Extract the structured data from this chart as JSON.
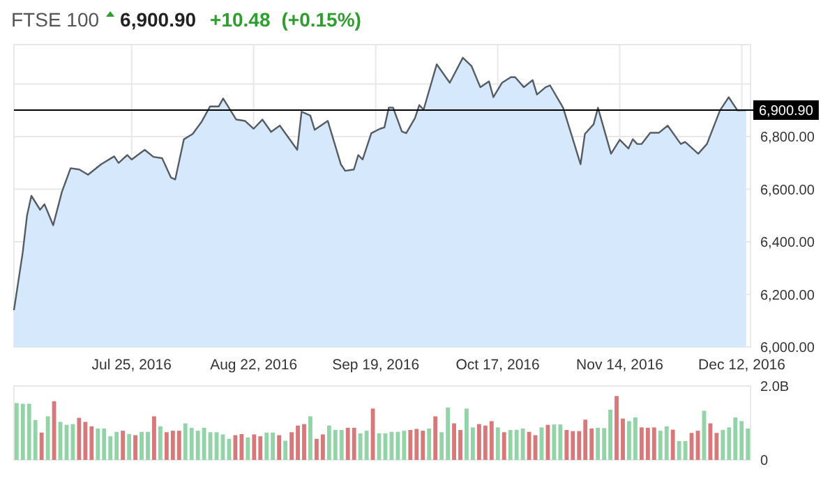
{
  "chart_data": [
    {
      "type": "area",
      "title": "FTSE 100",
      "annotations": [
        "6,900.90",
        "+10.48",
        "(+0.15%)"
      ],
      "x": [
        "2016-06-28",
        "2016-06-30",
        "2016-07-01",
        "2016-07-02",
        "2016-07-04",
        "2016-07-05",
        "2016-07-07",
        "2016-07-09",
        "2016-07-11",
        "2016-07-13",
        "2016-07-15",
        "2016-07-18",
        "2016-07-21",
        "2016-07-22",
        "2016-07-24",
        "2016-07-25",
        "2016-07-28",
        "2016-07-30",
        "2016-08-01",
        "2016-08-03",
        "2016-08-04",
        "2016-08-06",
        "2016-08-08",
        "2016-08-10",
        "2016-08-12",
        "2016-08-14",
        "2016-08-15",
        "2016-08-18",
        "2016-08-20",
        "2016-08-22",
        "2016-08-24",
        "2016-08-26",
        "2016-08-28",
        "2016-09-01",
        "2016-09-02",
        "2016-09-04",
        "2016-09-05",
        "2016-09-08",
        "2016-09-11",
        "2016-09-12",
        "2016-09-14",
        "2016-09-15",
        "2016-09-16",
        "2016-09-18",
        "2016-09-20",
        "2016-09-21",
        "2016-09-22",
        "2016-09-23",
        "2016-09-25",
        "2016-09-26",
        "2016-09-28",
        "2016-09-29",
        "2016-09-30",
        "2016-10-03",
        "2016-10-06",
        "2016-10-09",
        "2016-10-11",
        "2016-10-13",
        "2016-10-15",
        "2016-10-16",
        "2016-10-18",
        "2016-10-20",
        "2016-10-21",
        "2016-10-23",
        "2016-10-25",
        "2016-10-26",
        "2016-10-28",
        "2016-10-29",
        "2016-11-01",
        "2016-11-03",
        "2016-11-05",
        "2016-11-06",
        "2016-11-08",
        "2016-11-09",
        "2016-11-12",
        "2016-11-14",
        "2016-11-16",
        "2016-11-17",
        "2016-11-18",
        "2016-11-19",
        "2016-11-21",
        "2016-11-23",
        "2016-11-25",
        "2016-11-28",
        "2016-11-29",
        "2016-12-02",
        "2016-12-04",
        "2016-12-07",
        "2016-12-09",
        "2016-12-11",
        "2016-12-13"
      ],
      "series": [
        {
          "color": "#d6e8fb",
          "values": [
            6140,
            6358,
            6500,
            6575,
            6522,
            6543,
            6463,
            6590,
            6680,
            6675,
            6655,
            6695,
            6725,
            6700,
            6730,
            6713,
            6750,
            6723,
            6718,
            6645,
            6637,
            6790,
            6810,
            6855,
            6915,
            6915,
            6945,
            6865,
            6860,
            6830,
            6865,
            6818,
            6842,
            6750,
            6895,
            6880,
            6826,
            6860,
            6695,
            6670,
            6675,
            6730,
            6713,
            6813,
            6830,
            6835,
            6910,
            6910,
            6820,
            6813,
            6870,
            6920,
            6903,
            7075,
            7005,
            7100,
            7068,
            6988,
            7010,
            6950,
            7005,
            7026,
            7026,
            6988,
            7015,
            6960,
            6988,
            6995,
            6910,
            6803,
            6695,
            6810,
            6847,
            6910,
            6735,
            6788,
            6755,
            6790,
            6772,
            6772,
            6815,
            6815,
            6842,
            6772,
            6780,
            6735,
            6772,
            6900,
            6950,
            6900,
            6901
          ]
        }
      ],
      "xlim": [
        "2016-06-28",
        "2016-12-14"
      ],
      "xticks": [
        {
          "value": "2016-07-25",
          "label": "Jul 25, 2016"
        },
        {
          "value": "2016-08-22",
          "label": "Aug 22, 2016"
        },
        {
          "value": "2016-09-19",
          "label": "Sep 19, 2016"
        },
        {
          "value": "2016-10-17",
          "label": "Oct 17, 2016"
        },
        {
          "value": "2016-11-14",
          "label": "Nov 14, 2016"
        },
        {
          "value": "2016-12-12",
          "label": "Dec 12, 2016"
        }
      ],
      "ylim": [
        6000,
        7150
      ],
      "yticks": [
        {
          "value": 6000,
          "label": "6,000.00"
        },
        {
          "value": 6200,
          "label": "6,200.00"
        },
        {
          "value": 6400,
          "label": "6,400.00"
        },
        {
          "value": 6600,
          "label": "6,600.00"
        },
        {
          "value": 6800,
          "label": "6,800.00"
        },
        {
          "value": 7000,
          "label": null
        }
      ],
      "ref_lines": [
        {
          "axis": "y",
          "value": 6900.9,
          "label": "6,900.90",
          "color": "#000000"
        }
      ],
      "grid": true
    },
    {
      "type": "bar",
      "tick_labels": "y",
      "categories": [
        null,
        null,
        null,
        null,
        null,
        null,
        null,
        null,
        null,
        null,
        null,
        null,
        null,
        null,
        null,
        null,
        null,
        null,
        null,
        null,
        null,
        null,
        null,
        null,
        null,
        null,
        null,
        null,
        null,
        null,
        null,
        null,
        null,
        null,
        null,
        null,
        null,
        null,
        null,
        null,
        null,
        null,
        null,
        null,
        null,
        null,
        null,
        null,
        null,
        null,
        null,
        null,
        null,
        null,
        null,
        null,
        null,
        null,
        null,
        null,
        null,
        null,
        null,
        null,
        null,
        null,
        null,
        null,
        null,
        null,
        null,
        null,
        null,
        null,
        null,
        null,
        null,
        null,
        null,
        null,
        null,
        null,
        null,
        null,
        null,
        null,
        null,
        null,
        null,
        null,
        null,
        null,
        null,
        null,
        null,
        null,
        null,
        null,
        null,
        null,
        null,
        null,
        null,
        null,
        null,
        null,
        null,
        null,
        null,
        null,
        null,
        null,
        null,
        null,
        null,
        null,
        null,
        null
      ],
      "values": [
        1.54,
        1.52,
        1.52,
        1.08,
        0.74,
        1.18,
        1.59,
        1.03,
        0.95,
        0.97,
        1.14,
        1.03,
        0.91,
        0.85,
        0.85,
        0.64,
        0.76,
        0.79,
        0.7,
        0.67,
        0.76,
        0.76,
        1.18,
        0.91,
        0.75,
        0.79,
        0.79,
        0.99,
        0.87,
        0.79,
        0.87,
        0.75,
        0.75,
        0.69,
        0.57,
        0.67,
        0.7,
        0.61,
        0.69,
        0.64,
        0.74,
        0.74,
        0.67,
        0.52,
        0.75,
        0.93,
        0.97,
        1.18,
        0.57,
        0.69,
        0.93,
        0.81,
        0.81,
        0.87,
        0.87,
        0.72,
        0.79,
        1.39,
        0.72,
        0.72,
        0.76,
        0.76,
        0.79,
        0.81,
        0.84,
        0.79,
        0.85,
        1.18,
        0.75,
        1.42,
        0.99,
        0.81,
        1.39,
        0.88,
        0.97,
        0.93,
        1.05,
        0.88,
        0.75,
        0.81,
        0.81,
        0.85,
        0.76,
        0.67,
        0.88,
        0.95,
        0.96,
        0.96,
        0.81,
        0.78,
        0.78,
        1.09,
        0.85,
        0.87,
        0.86,
        1.36,
        1.73,
        1.12,
        1.05,
        1.15,
        0.88,
        0.87,
        0.88,
        0.79,
        0.91,
        0.82,
        0.51,
        0.51,
        0.73,
        0.79,
        1.33,
        0.99,
        0.73,
        0.81,
        0.88,
        1.15,
        1.05,
        0.85
      ],
      "colors": [
        "#93d3a8",
        "#93d3a8",
        "#93d3a8",
        "#93d3a8",
        "#d7787b",
        "#93d3a8",
        "#d7787b",
        "#93d3a8",
        "#93d3a8",
        "#93d3a8",
        "#d7787b",
        "#d7787b",
        "#d7787b",
        "#93d3a8",
        "#93d3a8",
        "#93d3a8",
        "#93d3a8",
        "#d7787b",
        "#93d3a8",
        "#d7787b",
        "#93d3a8",
        "#93d3a8",
        "#d7787b",
        "#93d3a8",
        "#d7787b",
        "#d7787b",
        "#d7787b",
        "#93d3a8",
        "#93d3a8",
        "#93d3a8",
        "#93d3a8",
        "#93d3a8",
        "#93d3a8",
        "#93d3a8",
        "#93d3a8",
        "#d7787b",
        "#d7787b",
        "#93d3a8",
        "#d7787b",
        "#d7787b",
        "#93d3a8",
        "#93d3a8",
        "#d7787b",
        "#93d3a8",
        "#d7787b",
        "#d7787b",
        "#d7787b",
        "#93d3a8",
        "#d7787b",
        "#d7787b",
        "#93d3a8",
        "#93d3a8",
        "#93d3a8",
        "#d7787b",
        "#d7787b",
        "#93d3a8",
        "#93d3a8",
        "#d7787b",
        "#93d3a8",
        "#93d3a8",
        "#93d3a8",
        "#93d3a8",
        "#93d3a8",
        "#d7787b",
        "#d7787b",
        "#d7787b",
        "#93d3a8",
        "#d7787b",
        "#93d3a8",
        "#93d3a8",
        "#d7787b",
        "#d7787b",
        "#93d3a8",
        "#93d3a8",
        "#d7787b",
        "#d7787b",
        "#d7787b",
        "#93d3a8",
        "#d7787b",
        "#93d3a8",
        "#93d3a8",
        "#93d3a8",
        "#d7787b",
        "#d7787b",
        "#93d3a8",
        "#d7787b",
        "#93d3a8",
        "#93d3a8",
        "#d7787b",
        "#d7787b",
        "#d7787b",
        "#d7787b",
        "#d7787b",
        "#93d3a8",
        "#93d3a8",
        "#93d3a8",
        "#d7787b",
        "#d7787b",
        "#93d3a8",
        "#93d3a8",
        "#d7787b",
        "#d7787b",
        "#d7787b",
        "#93d3a8",
        "#93d3a8",
        "#d7787b",
        "#93d3a8",
        "#93d3a8",
        "#d7787b",
        "#d7787b",
        "#93d3a8",
        "#d7787b",
        "#d7787b",
        "#93d3a8",
        "#93d3a8",
        "#93d3a8",
        "#93d3a8",
        "#93d3a8"
      ],
      "ylim": [
        0,
        2
      ],
      "yticks": [
        0,
        {
          "value": 2,
          "label": "2.0B"
        }
      ]
    }
  ]
}
